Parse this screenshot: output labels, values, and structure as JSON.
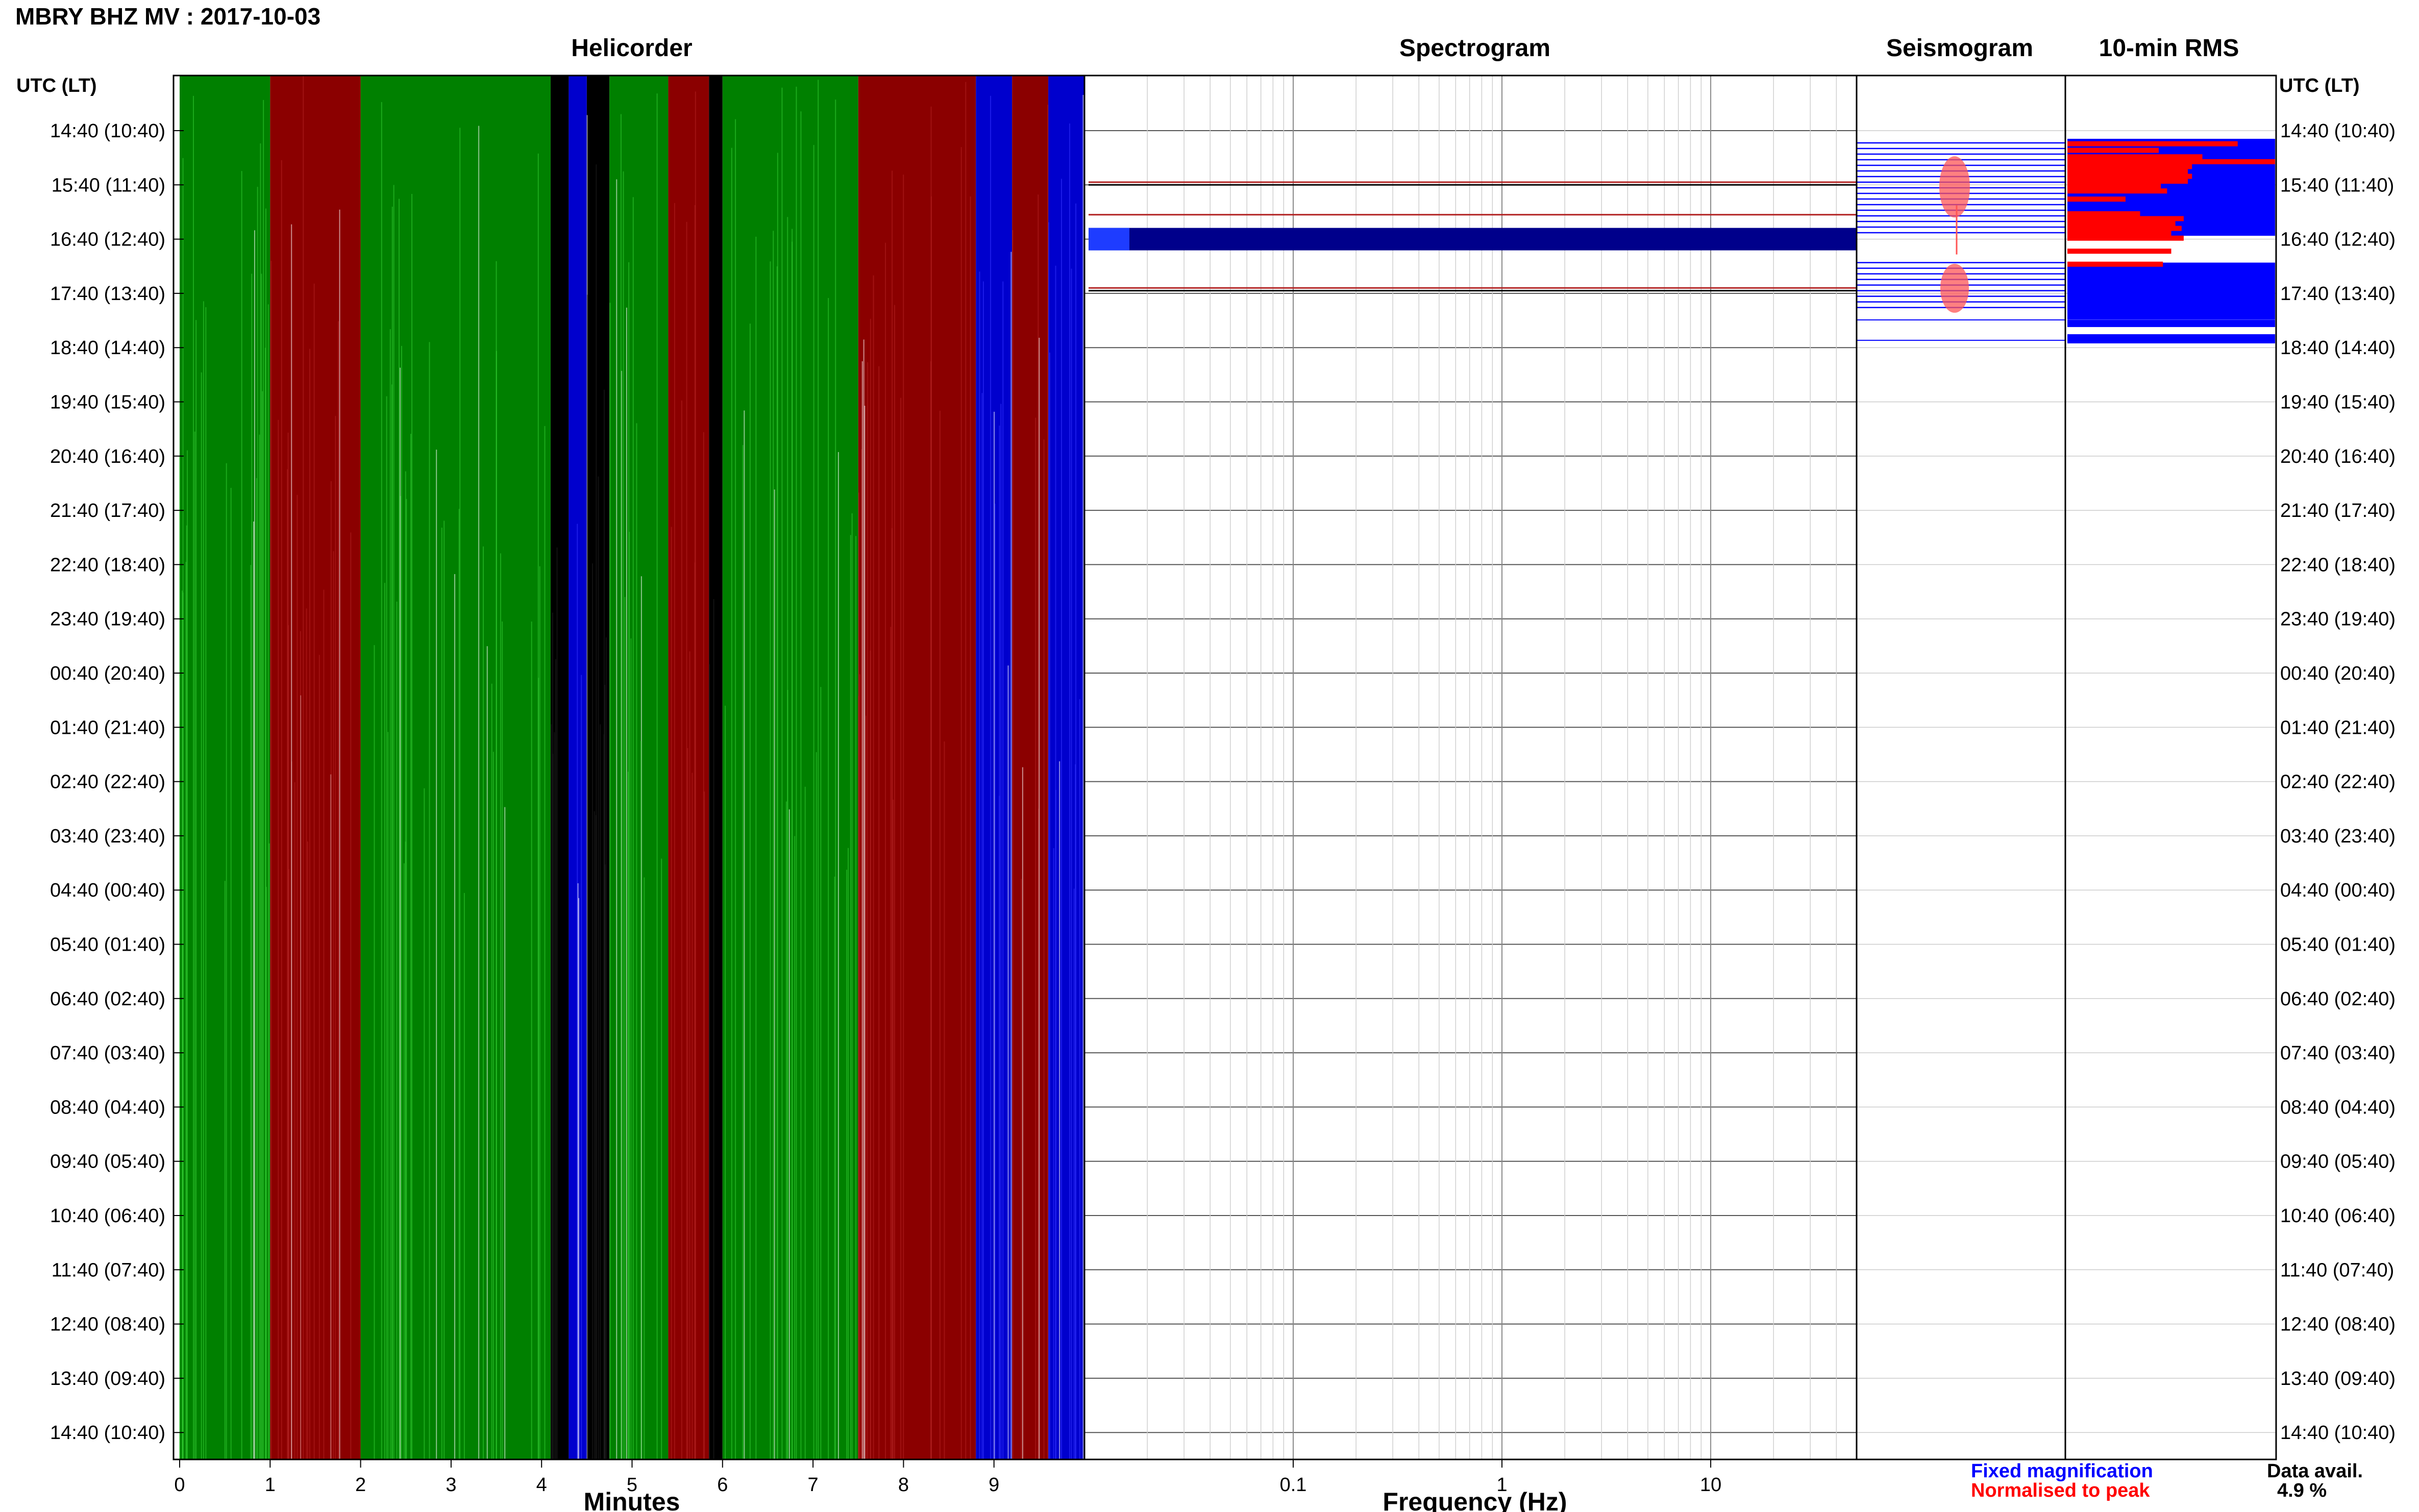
{
  "header": {
    "station_title": "MBRY BHZ MV : 2017-10-03"
  },
  "panels": {
    "helicorder": "Helicorder",
    "spectrogram": "Spectrogram",
    "seismogram": "Seismogram",
    "rms": "10-min RMS"
  },
  "axes": {
    "left_header": "UTC (LT)",
    "right_header": "UTC (LT)",
    "x_minutes_label": "Minutes",
    "x_frequency_label": "Frequency (Hz)"
  },
  "legend": {
    "fixed": "Fixed magnification",
    "normalised": "Normalised to peak",
    "fixed_color": "#0000ff",
    "normalised_color": "#ff0000"
  },
  "availability": {
    "label": "Data avail.",
    "value": "4.9 %"
  },
  "colors": {
    "green": "#008000",
    "red": "#8b0000",
    "blue": "#0000cd",
    "black": "#000000",
    "bright_blue": "#0000ff",
    "bright_red": "#ff0000"
  },
  "chart_data": {
    "type": "helicorder",
    "row_labels": [
      "14:40 (10:40)",
      "15:40 (11:40)",
      "16:40 (12:40)",
      "17:40 (13:40)",
      "18:40 (14:40)",
      "19:40 (15:40)",
      "20:40 (16:40)",
      "21:40 (17:40)",
      "22:40 (18:40)",
      "23:40 (19:40)",
      "00:40 (20:40)",
      "01:40 (21:40)",
      "02:40 (22:40)",
      "03:40 (23:40)",
      "04:40 (00:40)",
      "05:40 (01:40)",
      "06:40 (02:40)",
      "07:40 (03:40)",
      "08:40 (04:40)",
      "09:40 (05:40)",
      "10:40 (06:40)",
      "11:40 (07:40)",
      "12:40 (08:40)",
      "13:40 (09:40)",
      "14:40 (10:40)"
    ],
    "minutes_ticks": [
      "0",
      "1",
      "2",
      "3",
      "4",
      "5",
      "6",
      "7",
      "8",
      "9"
    ],
    "minutes_xlim": [
      0,
      10
    ],
    "frequency_ticks": [
      "0.1",
      "1",
      "10"
    ],
    "frequency_tick_values": [
      0.1,
      1,
      10
    ],
    "frequency_xlim": [
      0.01,
      50
    ],
    "frequency_scale": "log",
    "helicorder_bands": [
      {
        "from": 0.0,
        "to": 1.0,
        "color": "green"
      },
      {
        "from": 1.0,
        "to": 2.0,
        "color": "red"
      },
      {
        "from": 2.0,
        "to": 4.1,
        "color": "green"
      },
      {
        "from": 4.1,
        "to": 4.3,
        "color": "black"
      },
      {
        "from": 4.3,
        "to": 4.5,
        "color": "blue"
      },
      {
        "from": 4.5,
        "to": 4.75,
        "color": "black"
      },
      {
        "from": 4.75,
        "to": 5.4,
        "color": "green"
      },
      {
        "from": 5.4,
        "to": 5.85,
        "color": "red"
      },
      {
        "from": 5.85,
        "to": 6.0,
        "color": "black"
      },
      {
        "from": 6.0,
        "to": 7.5,
        "color": "green"
      },
      {
        "from": 7.5,
        "to": 8.8,
        "color": "red"
      },
      {
        "from": 8.8,
        "to": 9.2,
        "color": "blue"
      },
      {
        "from": 9.2,
        "to": 9.6,
        "color": "red"
      },
      {
        "from": 9.6,
        "to": 10.0,
        "color": "blue"
      }
    ],
    "rms_rows": [
      {
        "row": 0.2,
        "fixed": 1.0,
        "normalised": 0.82
      },
      {
        "row": 0.4,
        "fixed": 1.0,
        "normalised": 0.44
      },
      {
        "row": 0.6,
        "fixed": 1.0,
        "normalised": 0.65
      },
      {
        "row": 0.75,
        "fixed": 1.0,
        "normalised": 1.0
      },
      {
        "row": 0.9,
        "fixed": 1.0,
        "normalised": 0.6
      },
      {
        "row": 1.05,
        "fixed": 1.0,
        "normalised": 0.58
      },
      {
        "row": 1.2,
        "fixed": 1.0,
        "normalised": 0.6
      },
      {
        "row": 1.35,
        "fixed": 1.0,
        "normalised": 0.58
      },
      {
        "row": 1.5,
        "fixed": 1.0,
        "normalised": 0.45
      },
      {
        "row": 1.65,
        "fixed": 1.0,
        "normalised": 0.48
      },
      {
        "row": 1.9,
        "fixed": 1.0,
        "normalised": 0.28
      },
      {
        "row": 2.35,
        "fixed": 1.0,
        "normalised": 0.35
      },
      {
        "row": 2.5,
        "fixed": 1.0,
        "normalised": 0.56
      },
      {
        "row": 2.65,
        "fixed": 1.0,
        "normalised": 0.52
      },
      {
        "row": 2.8,
        "fixed": 1.0,
        "normalised": 0.55
      },
      {
        "row": 2.95,
        "fixed": 1.0,
        "normalised": 0.5
      },
      {
        "row": 3.1,
        "fixed": 1.0,
        "normalised": 0.56
      },
      {
        "row": 3.5,
        "fixed": 1.0,
        "normalised": 0.5
      },
      {
        "row": 3.9,
        "fixed": 1.0,
        "normalised": 0.46
      }
    ],
    "spectrogram_rows": [
      {
        "row": 0.95,
        "color": "red"
      },
      {
        "row": 1.0,
        "color": "black"
      },
      {
        "row": 1.55,
        "color": "red"
      },
      {
        "row": 2.0,
        "color": "blue_band"
      },
      {
        "row": 2.9,
        "color": "red"
      },
      {
        "row": 2.95,
        "color": "black"
      }
    ]
  }
}
